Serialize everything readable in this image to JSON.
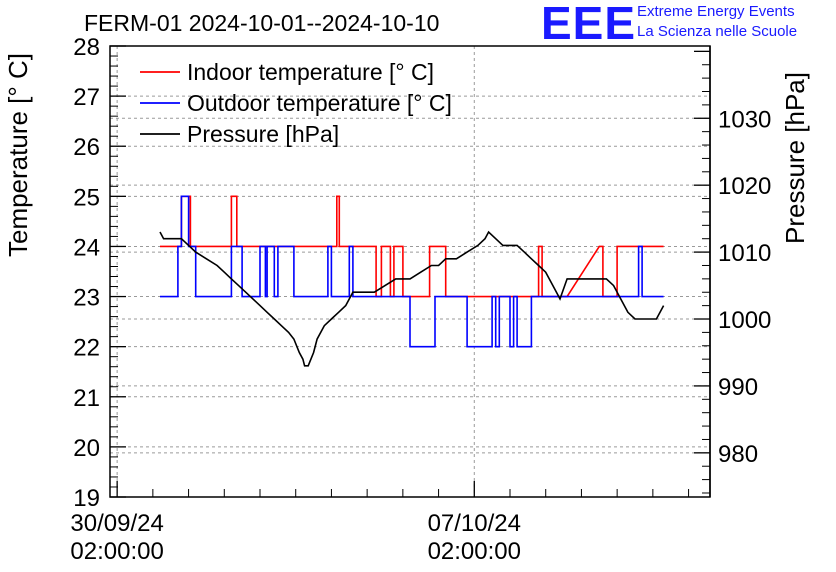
{
  "title": "FERM-01 2024-10-01--2024-10-10",
  "logo": {
    "text": "EEE",
    "line1": "Extreme Energy Events",
    "line2": "La Scienza nelle Scuole",
    "color": "#1a1aff"
  },
  "chart_data": {
    "type": "line",
    "ylabel": "Temperature [° C]",
    "y2label": "Pressure [hPa]",
    "ylim": [
      19,
      28
    ],
    "y2lim": [
      973.4,
      1040.8
    ],
    "yticks": [
      "19",
      "20",
      "21",
      "22",
      "23",
      "24",
      "25",
      "26",
      "27",
      "28"
    ],
    "y2ticks": [
      "980",
      "990",
      "1000",
      "1010",
      "1020",
      "1030"
    ],
    "xlim": [
      -0.2,
      16.6
    ],
    "xticks": [
      {
        "x": 0,
        "line1": "30/09/24",
        "line2": "02:00:00"
      },
      {
        "x": 10,
        "line1": "07/10/24",
        "line2": "02:00:00"
      }
    ],
    "grid": true,
    "legend_position": "top-left",
    "series": [
      {
        "name": "Indoor temperature [° C]",
        "color": "#ff0000",
        "axis": "left",
        "points": [
          [
            1.2,
            24
          ],
          [
            1.8,
            24
          ],
          [
            1.8,
            25
          ],
          [
            2.05,
            25
          ],
          [
            2.05,
            24
          ],
          [
            3.2,
            24
          ],
          [
            3.2,
            25
          ],
          [
            3.35,
            25
          ],
          [
            3.35,
            24
          ],
          [
            6.15,
            24
          ],
          [
            6.15,
            25
          ],
          [
            6.22,
            25
          ],
          [
            6.22,
            24
          ],
          [
            7.25,
            24
          ],
          [
            7.25,
            23
          ],
          [
            7.4,
            23
          ],
          [
            7.4,
            24
          ],
          [
            7.65,
            24
          ],
          [
            7.65,
            23
          ],
          [
            7.75,
            23
          ],
          [
            7.75,
            24
          ],
          [
            8.0,
            24
          ],
          [
            8.0,
            23
          ],
          [
            8.75,
            23
          ],
          [
            8.75,
            24
          ],
          [
            9.2,
            24
          ],
          [
            9.2,
            23
          ],
          [
            11.8,
            23
          ],
          [
            11.8,
            24
          ],
          [
            11.9,
            24
          ],
          [
            11.9,
            23
          ],
          [
            12.6,
            23
          ],
          [
            13.5,
            24
          ],
          [
            13.6,
            24
          ],
          [
            13.6,
            23
          ],
          [
            14.0,
            23
          ],
          [
            14.0,
            24
          ],
          [
            15.3,
            24
          ]
        ]
      },
      {
        "name": "Outdoor temperature [° C]",
        "color": "#0000ff",
        "axis": "left",
        "points": [
          [
            1.2,
            23
          ],
          [
            1.7,
            23
          ],
          [
            1.7,
            24
          ],
          [
            1.8,
            24
          ],
          [
            1.8,
            25
          ],
          [
            2.0,
            25
          ],
          [
            2.0,
            24
          ],
          [
            2.2,
            24
          ],
          [
            2.2,
            23
          ],
          [
            3.2,
            23
          ],
          [
            3.2,
            24
          ],
          [
            3.5,
            24
          ],
          [
            3.5,
            23
          ],
          [
            4.0,
            23
          ],
          [
            4.0,
            24
          ],
          [
            4.15,
            24
          ],
          [
            4.15,
            23
          ],
          [
            4.2,
            23
          ],
          [
            4.2,
            24
          ],
          [
            4.4,
            24
          ],
          [
            4.4,
            23
          ],
          [
            4.5,
            23
          ],
          [
            4.5,
            24
          ],
          [
            4.95,
            24
          ],
          [
            4.95,
            23
          ],
          [
            5.9,
            23
          ],
          [
            5.9,
            24
          ],
          [
            6.0,
            24
          ],
          [
            6.0,
            23
          ],
          [
            6.5,
            23
          ],
          [
            6.5,
            24
          ],
          [
            6.6,
            24
          ],
          [
            6.6,
            23
          ],
          [
            8.2,
            23
          ],
          [
            8.2,
            22
          ],
          [
            8.9,
            22
          ],
          [
            8.9,
            23
          ],
          [
            9.8,
            23
          ],
          [
            9.8,
            22
          ],
          [
            10.5,
            22
          ],
          [
            10.5,
            23
          ],
          [
            10.6,
            23
          ],
          [
            10.6,
            22
          ],
          [
            10.7,
            22
          ],
          [
            10.7,
            23
          ],
          [
            11.0,
            23
          ],
          [
            11.0,
            22
          ],
          [
            11.1,
            22
          ],
          [
            11.1,
            23
          ],
          [
            11.2,
            23
          ],
          [
            11.2,
            22
          ],
          [
            11.6,
            22
          ],
          [
            11.6,
            23
          ],
          [
            14.6,
            23
          ],
          [
            14.6,
            24
          ],
          [
            14.7,
            24
          ],
          [
            14.7,
            23
          ],
          [
            15.3,
            23
          ]
        ]
      },
      {
        "name": "Pressure [hPa]",
        "color": "#000000",
        "axis": "right",
        "points": [
          [
            1.2,
            1013
          ],
          [
            1.3,
            1012
          ],
          [
            1.5,
            1012
          ],
          [
            1.8,
            1012
          ],
          [
            2.0,
            1011
          ],
          [
            2.2,
            1010
          ],
          [
            2.5,
            1009
          ],
          [
            2.8,
            1008
          ],
          [
            3.0,
            1007
          ],
          [
            3.2,
            1006
          ],
          [
            3.4,
            1005
          ],
          [
            3.6,
            1004
          ],
          [
            3.8,
            1003
          ],
          [
            4.0,
            1002
          ],
          [
            4.2,
            1001
          ],
          [
            4.4,
            1000
          ],
          [
            4.6,
            999
          ],
          [
            4.8,
            998
          ],
          [
            4.95,
            997
          ],
          [
            5.1,
            995
          ],
          [
            5.2,
            994
          ],
          [
            5.25,
            993
          ],
          [
            5.35,
            993
          ],
          [
            5.5,
            995
          ],
          [
            5.6,
            997
          ],
          [
            5.8,
            999
          ],
          [
            6.0,
            1000
          ],
          [
            6.2,
            1001
          ],
          [
            6.4,
            1002
          ],
          [
            6.6,
            1004
          ],
          [
            6.8,
            1004
          ],
          [
            7.0,
            1004
          ],
          [
            7.2,
            1004
          ],
          [
            7.5,
            1005
          ],
          [
            7.8,
            1006
          ],
          [
            8.2,
            1006
          ],
          [
            8.5,
            1007
          ],
          [
            8.8,
            1008
          ],
          [
            9.0,
            1008
          ],
          [
            9.2,
            1009
          ],
          [
            9.5,
            1009
          ],
          [
            9.8,
            1010
          ],
          [
            10.1,
            1011
          ],
          [
            10.3,
            1012
          ],
          [
            10.4,
            1013
          ],
          [
            10.6,
            1012
          ],
          [
            10.8,
            1011
          ],
          [
            11.0,
            1011
          ],
          [
            11.2,
            1011
          ],
          [
            11.4,
            1010
          ],
          [
            11.6,
            1009
          ],
          [
            11.8,
            1008
          ],
          [
            12.0,
            1007
          ],
          [
            12.2,
            1005
          ],
          [
            12.4,
            1003
          ],
          [
            12.6,
            1006
          ],
          [
            13.0,
            1006
          ],
          [
            13.4,
            1006
          ],
          [
            13.7,
            1006
          ],
          [
            13.9,
            1005
          ],
          [
            14.1,
            1003
          ],
          [
            14.3,
            1001
          ],
          [
            14.5,
            1000
          ],
          [
            14.7,
            1000
          ],
          [
            14.9,
            1000
          ],
          [
            15.1,
            1000
          ],
          [
            15.3,
            1002
          ]
        ]
      }
    ]
  }
}
